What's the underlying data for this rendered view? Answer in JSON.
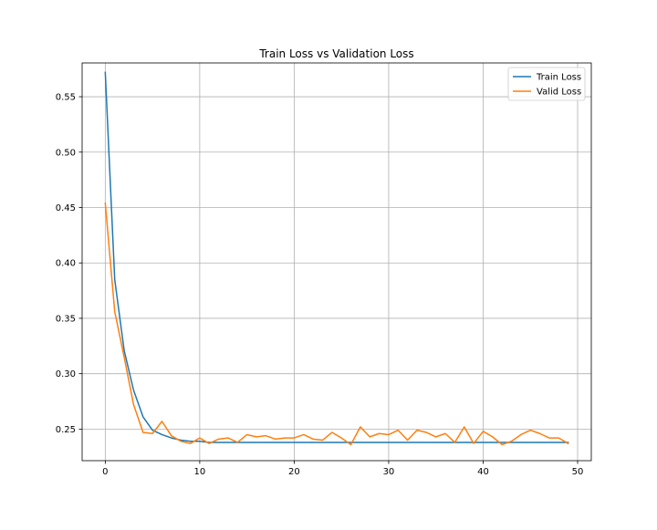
{
  "chart_data": {
    "type": "line",
    "title": "Train Loss vs Validation Loss",
    "xlabel": "",
    "ylabel": "",
    "xlim": [
      -2.45,
      51.45
    ],
    "ylim": [
      0.2215,
      0.5805
    ],
    "x_ticks": [
      0,
      10,
      20,
      30,
      40,
      50
    ],
    "y_ticks": [
      0.25,
      0.3,
      0.35,
      0.4,
      0.45,
      0.5,
      0.55
    ],
    "x_tick_labels": [
      "0",
      "10",
      "20",
      "30",
      "40",
      "50"
    ],
    "y_tick_labels": [
      "0.25",
      "0.30",
      "0.35",
      "0.40",
      "0.45",
      "0.50",
      "0.55"
    ],
    "grid": true,
    "legend_position": "top-right",
    "x": [
      0,
      1,
      2,
      3,
      4,
      5,
      6,
      7,
      8,
      9,
      10,
      11,
      12,
      13,
      14,
      15,
      16,
      17,
      18,
      19,
      20,
      21,
      22,
      23,
      24,
      25,
      26,
      27,
      28,
      29,
      30,
      31,
      32,
      33,
      34,
      35,
      36,
      37,
      38,
      39,
      40,
      41,
      42,
      43,
      44,
      45,
      46,
      47,
      48,
      49
    ],
    "series": [
      {
        "name": "Train Loss",
        "color": "#1f77b4",
        "values": [
          0.572,
          0.385,
          0.321,
          0.285,
          0.261,
          0.249,
          0.245,
          0.242,
          0.24,
          0.239,
          0.239,
          0.238,
          0.238,
          0.238,
          0.238,
          0.238,
          0.238,
          0.238,
          0.238,
          0.238,
          0.238,
          0.238,
          0.238,
          0.238,
          0.238,
          0.238,
          0.238,
          0.238,
          0.238,
          0.238,
          0.238,
          0.238,
          0.238,
          0.238,
          0.238,
          0.238,
          0.238,
          0.238,
          0.238,
          0.238,
          0.238,
          0.238,
          0.238,
          0.238,
          0.238,
          0.238,
          0.238,
          0.238,
          0.238,
          0.238
        ]
      },
      {
        "name": "Valid Loss",
        "color": "#ff7f0e",
        "values": [
          0.454,
          0.356,
          0.315,
          0.272,
          0.247,
          0.246,
          0.257,
          0.244,
          0.239,
          0.237,
          0.242,
          0.237,
          0.241,
          0.242,
          0.238,
          0.245,
          0.243,
          0.244,
          0.241,
          0.242,
          0.242,
          0.245,
          0.241,
          0.24,
          0.247,
          0.242,
          0.236,
          0.252,
          0.243,
          0.246,
          0.245,
          0.249,
          0.24,
          0.249,
          0.247,
          0.243,
          0.246,
          0.238,
          0.252,
          0.237,
          0.248,
          0.243,
          0.236,
          0.239,
          0.245,
          0.249,
          0.246,
          0.242,
          0.242,
          0.237
        ]
      }
    ]
  }
}
